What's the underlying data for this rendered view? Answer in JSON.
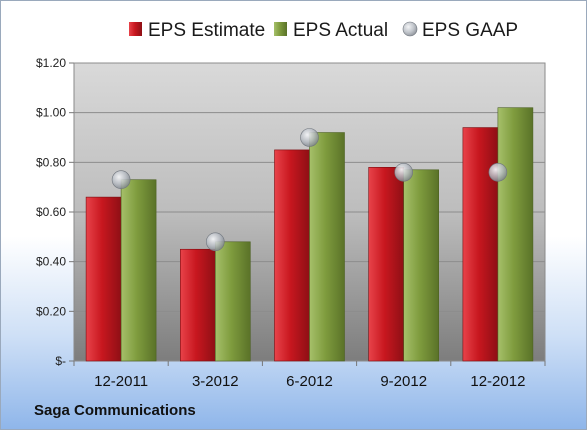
{
  "company": "Saga Communications",
  "chart_data": {
    "type": "bar",
    "categories": [
      "12-2011",
      "3-2012",
      "6-2012",
      "9-2012",
      "12-2012"
    ],
    "series": [
      {
        "name": "EPS Estimate",
        "type": "bar",
        "color": "#c8171f",
        "values": [
          0.66,
          0.45,
          0.85,
          0.78,
          0.94
        ]
      },
      {
        "name": "EPS Actual",
        "type": "bar",
        "color": "#7f9c3e",
        "values": [
          0.73,
          0.48,
          0.92,
          0.77,
          1.02
        ]
      },
      {
        "name": "EPS GAAP",
        "type": "scatter",
        "color": "#b8bdc4",
        "values": [
          0.73,
          0.48,
          0.9,
          0.76,
          0.76
        ]
      }
    ],
    "ylim": [
      0,
      1.2
    ],
    "yticks": [
      0,
      0.2,
      0.4,
      0.6,
      0.8,
      1.0,
      1.2
    ],
    "ytick_labels": [
      "$-",
      "$0.20",
      "$0.40",
      "$0.60",
      "$0.80",
      "$1.00",
      "$1.20"
    ],
    "grid": true,
    "legend_position": "top"
  }
}
